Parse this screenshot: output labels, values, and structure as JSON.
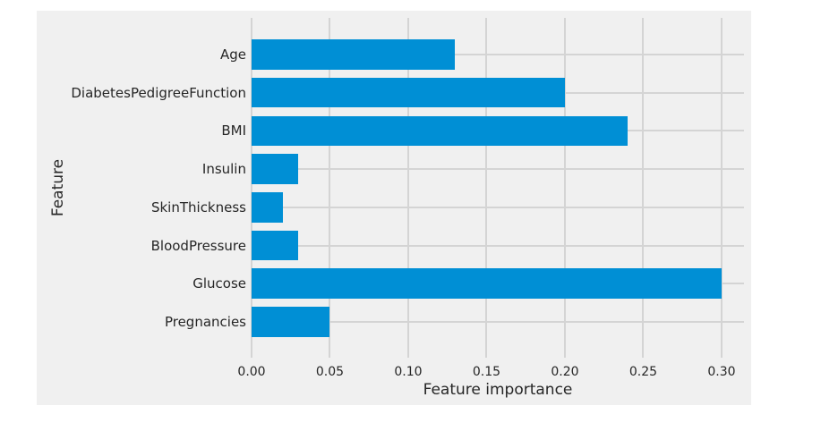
{
  "chart_data": {
    "type": "bar",
    "orientation": "horizontal",
    "title": "",
    "xlabel": "Feature importance",
    "ylabel": "Feature",
    "categories": [
      "Age",
      "DiabetesPedigreeFunction",
      "BMI",
      "Insulin",
      "SkinThickness",
      "BloodPressure",
      "Glucose",
      "Pregnancies"
    ],
    "categories_order": "top-to-bottom",
    "values": [
      0.13,
      0.2,
      0.24,
      0.03,
      0.02,
      0.03,
      0.3,
      0.05
    ],
    "x_ticks": [
      {
        "value": 0.0,
        "label": "0.00"
      },
      {
        "value": 0.05,
        "label": "0.05"
      },
      {
        "value": 0.1,
        "label": "0.10"
      },
      {
        "value": 0.15,
        "label": "0.15"
      },
      {
        "value": 0.2,
        "label": "0.20"
      },
      {
        "value": 0.25,
        "label": "0.25"
      },
      {
        "value": 0.3,
        "label": "0.30"
      }
    ],
    "xlim": [
      0,
      0.3143
    ],
    "grid": true,
    "legend": null,
    "style": "fivethirtyeight",
    "colors": {
      "bar": "#008fd5",
      "figure_background": "#f0f0f0",
      "page_background": "#ffffff",
      "grid": "#d4d4d4",
      "text": "#262626"
    }
  }
}
